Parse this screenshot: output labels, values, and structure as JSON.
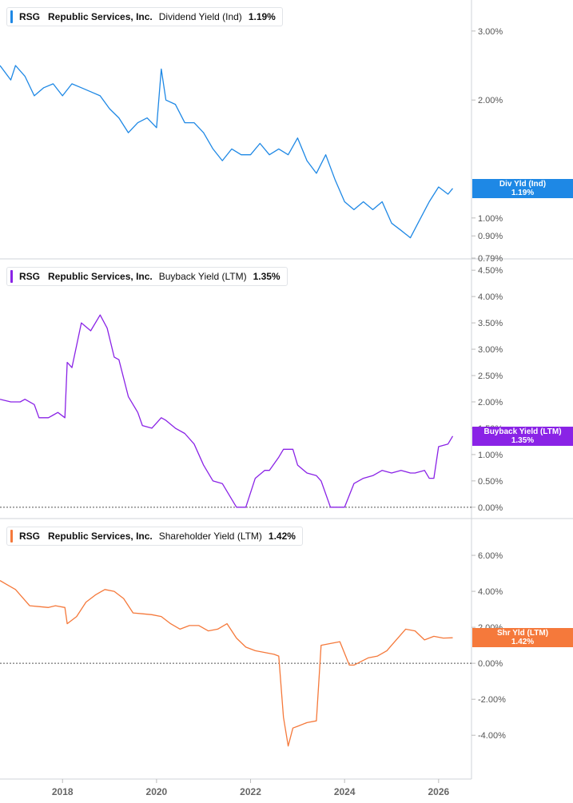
{
  "chart_data": [
    {
      "type": "line",
      "ticker": "RSG",
      "company": "Republic Services, Inc.",
      "metric": "Dividend Yield (Ind)",
      "current_value": "1.19%",
      "flag_label": "Div Yld (Ind)",
      "color": "#1e88e5",
      "y_scale": "log",
      "ylim": [
        0.79,
        3.6
      ],
      "ytick_labels": [
        "3.00%",
        "2.00%",
        "1.00%",
        "0.90%",
        "0.79%"
      ],
      "ytick_values": [
        3.0,
        2.0,
        1.0,
        0.9,
        0.79
      ],
      "zero_line": false,
      "series": [
        {
          "x": [
            2016.67,
            2016.9,
            2017.0,
            2017.2,
            2017.4,
            2017.6,
            2017.8,
            2018.0,
            2018.2,
            2018.4,
            2018.6,
            2018.8,
            2019.0,
            2019.2,
            2019.4,
            2019.6,
            2019.8,
            2020.0,
            2020.1,
            2020.2,
            2020.4,
            2020.6,
            2020.8,
            2021.0,
            2021.2,
            2021.4,
            2021.6,
            2021.8,
            2022.0,
            2022.2,
            2022.4,
            2022.6,
            2022.8,
            2023.0,
            2023.2,
            2023.4,
            2023.6,
            2023.8,
            2024.0,
            2024.2,
            2024.4,
            2024.6,
            2024.8,
            2025.0,
            2025.2,
            2025.4,
            2025.6,
            2025.8,
            2026.0,
            2026.2,
            2026.3
          ],
          "values": [
            2.45,
            2.25,
            2.45,
            2.3,
            2.05,
            2.15,
            2.2,
            2.05,
            2.2,
            2.15,
            2.1,
            2.05,
            1.9,
            1.8,
            1.65,
            1.75,
            1.8,
            1.7,
            2.4,
            2.0,
            1.95,
            1.75,
            1.75,
            1.65,
            1.5,
            1.4,
            1.5,
            1.45,
            1.45,
            1.55,
            1.45,
            1.5,
            1.45,
            1.6,
            1.4,
            1.3,
            1.45,
            1.25,
            1.1,
            1.05,
            1.1,
            1.05,
            1.1,
            0.97,
            0.93,
            0.89,
            0.99,
            1.1,
            1.2,
            1.15,
            1.19
          ]
        }
      ]
    },
    {
      "type": "line",
      "ticker": "RSG",
      "company": "Republic Services, Inc.",
      "metric": "Buyback Yield (LTM)",
      "current_value": "1.35%",
      "flag_label": "Buyback Yield (LTM)",
      "color": "#8a23e6",
      "y_scale": "linear",
      "ylim": [
        -0.2,
        4.7
      ],
      "ytick_labels": [
        "4.50%",
        "4.00%",
        "3.50%",
        "3.00%",
        "2.50%",
        "2.00%",
        "1.50%",
        "1.00%",
        "0.50%",
        "0.00%"
      ],
      "ytick_values": [
        4.5,
        4.0,
        3.5,
        3.0,
        2.5,
        2.0,
        1.5,
        1.0,
        0.5,
        0.0
      ],
      "zero_line": true,
      "series": [
        {
          "x": [
            2016.67,
            2016.9,
            2017.1,
            2017.2,
            2017.4,
            2017.5,
            2017.7,
            2017.8,
            2017.9,
            2018.05,
            2018.1,
            2018.2,
            2018.4,
            2018.6,
            2018.8,
            2018.95,
            2019.1,
            2019.2,
            2019.4,
            2019.6,
            2019.7,
            2019.9,
            2020.1,
            2020.2,
            2020.4,
            2020.6,
            2020.8,
            2021.0,
            2021.2,
            2021.4,
            2021.6,
            2021.7,
            2021.9,
            2022.1,
            2022.3,
            2022.4,
            2022.6,
            2022.7,
            2022.9,
            2023.0,
            2023.2,
            2023.4,
            2023.5,
            2023.7,
            2023.8,
            2024.0,
            2024.2,
            2024.4,
            2024.6,
            2024.8,
            2025.0,
            2025.2,
            2025.4,
            2025.5,
            2025.7,
            2025.8,
            2025.9,
            2026.0,
            2026.2,
            2026.3
          ],
          "values": [
            2.05,
            2.0,
            2.0,
            2.05,
            1.95,
            1.7,
            1.7,
            1.75,
            1.8,
            1.7,
            2.75,
            2.65,
            3.5,
            3.35,
            3.65,
            3.4,
            2.85,
            2.8,
            2.1,
            1.8,
            1.55,
            1.5,
            1.7,
            1.65,
            1.5,
            1.4,
            1.2,
            0.8,
            0.5,
            0.45,
            0.15,
            0.0,
            0.0,
            0.55,
            0.7,
            0.7,
            0.95,
            1.1,
            1.1,
            0.8,
            0.65,
            0.6,
            0.5,
            0.0,
            0.0,
            0.0,
            0.45,
            0.55,
            0.6,
            0.7,
            0.65,
            0.7,
            0.65,
            0.65,
            0.7,
            0.55,
            0.55,
            1.15,
            1.2,
            1.35
          ]
        }
      ]
    },
    {
      "type": "line",
      "ticker": "RSG",
      "company": "Republic Services, Inc.",
      "metric": "Shareholder Yield (LTM)",
      "current_value": "1.42%",
      "flag_label": "Shr Yld (LTM)",
      "color": "#f5793b",
      "y_scale": "linear",
      "ylim": [
        -6.3,
        8.0
      ],
      "ytick_labels": [
        "6.00%",
        "4.00%",
        "2.00%",
        "0.00%",
        "-2.00%",
        "-4.00%"
      ],
      "ytick_values": [
        6.0,
        4.0,
        2.0,
        0.0,
        -2.0,
        -4.0
      ],
      "zero_line": true,
      "series": [
        {
          "x": [
            2016.67,
            2016.8,
            2017.0,
            2017.3,
            2017.5,
            2017.7,
            2017.85,
            2018.05,
            2018.1,
            2018.3,
            2018.5,
            2018.7,
            2018.9,
            2019.1,
            2019.3,
            2019.5,
            2019.7,
            2019.9,
            2020.1,
            2020.3,
            2020.5,
            2020.7,
            2020.9,
            2021.1,
            2021.3,
            2021.5,
            2021.7,
            2021.9,
            2022.1,
            2022.3,
            2022.5,
            2022.6,
            2022.7,
            2022.8,
            2022.9,
            2023.0,
            2023.2,
            2023.4,
            2023.5,
            2023.7,
            2023.9,
            2024.1,
            2024.2,
            2024.5,
            2024.7,
            2024.9,
            2025.0,
            2025.3,
            2025.5,
            2025.7,
            2025.9,
            2026.1,
            2026.3
          ],
          "values": [
            4.6,
            4.4,
            4.1,
            3.2,
            3.15,
            3.1,
            3.2,
            3.1,
            2.2,
            2.6,
            3.4,
            3.8,
            4.1,
            4.0,
            3.6,
            2.8,
            2.75,
            2.7,
            2.6,
            2.2,
            1.9,
            2.1,
            2.1,
            1.8,
            1.9,
            2.2,
            1.4,
            0.9,
            0.7,
            0.6,
            0.5,
            0.4,
            -3.0,
            -4.6,
            -3.6,
            -3.5,
            -3.3,
            -3.2,
            1.0,
            1.1,
            1.2,
            -0.1,
            -0.1,
            0.3,
            0.4,
            0.7,
            1.0,
            1.9,
            1.8,
            1.3,
            1.5,
            1.4,
            1.42
          ]
        }
      ]
    }
  ],
  "x_axis": {
    "tick_labels": [
      "2018",
      "2020",
      "2022",
      "2024",
      "2026"
    ],
    "tick_values": [
      2018,
      2020,
      2022,
      2024,
      2026
    ],
    "xlim": [
      2016.67,
      2026.7
    ]
  },
  "colors": {
    "grid_line": "#cccccc",
    "axis_text": "#555555",
    "background": "#ffffff"
  }
}
